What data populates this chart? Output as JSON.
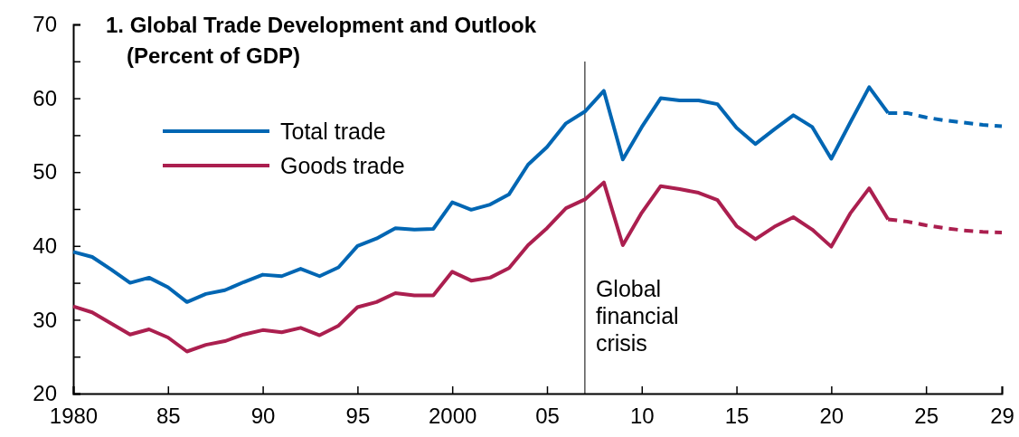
{
  "chart_data": {
    "type": "line",
    "title": "1. Global Trade Development and Outlook",
    "subtitle": "(Percent of GDP)",
    "xlim": [
      1980,
      2029
    ],
    "xticks": [
      {
        "value": 1980,
        "label": "1980"
      },
      {
        "value": 1985,
        "label": "85"
      },
      {
        "value": 1990,
        "label": "90"
      },
      {
        "value": 1995,
        "label": "95"
      },
      {
        "value": 2000,
        "label": "2000"
      },
      {
        "value": 2005,
        "label": "05"
      },
      {
        "value": 2010,
        "label": "10"
      },
      {
        "value": 2015,
        "label": "15"
      },
      {
        "value": 2020,
        "label": "20"
      },
      {
        "value": 2025,
        "label": "25"
      },
      {
        "value": 2029,
        "label": "29"
      }
    ],
    "ylim": [
      20,
      70
    ],
    "yticks": [
      20,
      {
        "value": 25,
        "label": null
      },
      30,
      {
        "value": 35,
        "label": null
      },
      40,
      {
        "value": 45,
        "label": null
      },
      50,
      {
        "value": 55,
        "label": null
      },
      60,
      {
        "value": 65,
        "label": null
      },
      70
    ],
    "legend": "top left",
    "grid": false,
    "marker": "none",
    "ref_lines": [
      {
        "axis": "x",
        "value": 2007,
        "label": "Global financial crisis",
        "color": "#000000"
      }
    ],
    "series": [
      {
        "name": "Total trade",
        "color": "#0066b3",
        "line_style": "solid",
        "x": [
          1980,
          1981,
          1982,
          1983,
          1984,
          1985,
          1986,
          1987,
          1988,
          1989,
          1990,
          1991,
          1992,
          1993,
          1994,
          1995,
          1996,
          1997,
          1998,
          1999,
          2000,
          2001,
          2002,
          2003,
          2004,
          2005,
          2006,
          2007,
          2008,
          2009,
          2010,
          2011,
          2012,
          2013,
          2014,
          2015,
          2016,
          2017,
          2018,
          2019,
          2020,
          2021,
          2022,
          2023
        ],
        "values": [
          39.2,
          38.5,
          36.8,
          35.0,
          35.7,
          34.4,
          32.4,
          33.5,
          34.0,
          35.1,
          36.1,
          35.9,
          36.9,
          35.9,
          37.1,
          40.0,
          41.0,
          42.4,
          42.2,
          42.3,
          45.9,
          44.9,
          45.6,
          47.0,
          51.0,
          53.4,
          56.6,
          58.2,
          61.0,
          51.7,
          56.1,
          60.0,
          59.7,
          59.7,
          59.2,
          56.0,
          53.8,
          55.8,
          57.7,
          56.1,
          51.8,
          56.7,
          61.5,
          58.0
        ]
      },
      {
        "name": "Goods trade",
        "color": "#ab1f4f",
        "line_style": "solid",
        "x": [
          1980,
          1981,
          1982,
          1983,
          1984,
          1985,
          1986,
          1987,
          1988,
          1989,
          1990,
          1991,
          1992,
          1993,
          1994,
          1995,
          1996,
          1997,
          1998,
          1999,
          2000,
          2001,
          2002,
          2003,
          2004,
          2005,
          2006,
          2007,
          2008,
          2009,
          2010,
          2011,
          2012,
          2013,
          2014,
          2015,
          2016,
          2017,
          2018,
          2019,
          2020,
          2021,
          2022,
          2023
        ],
        "values": [
          31.8,
          31.0,
          29.5,
          28.0,
          28.7,
          27.6,
          25.7,
          26.6,
          27.1,
          28.0,
          28.6,
          28.3,
          28.9,
          27.9,
          29.2,
          31.7,
          32.4,
          33.6,
          33.3,
          33.3,
          36.5,
          35.3,
          35.7,
          37.0,
          40.1,
          42.4,
          45.1,
          46.3,
          48.6,
          40.1,
          44.5,
          48.1,
          47.7,
          47.2,
          46.2,
          42.7,
          40.9,
          42.6,
          43.9,
          42.2,
          39.9,
          44.4,
          47.8,
          43.6
        ]
      },
      {
        "color": "#0066b3",
        "line_style": "dashed",
        "x": [
          2023,
          2024,
          2025,
          2026,
          2027,
          2028,
          2029
        ],
        "values": [
          58.0,
          58.0,
          57.4,
          57.0,
          56.7,
          56.4,
          56.2
        ]
      },
      {
        "color": "#ab1f4f",
        "line_style": "dashed",
        "x": [
          2023,
          2024,
          2025,
          2026,
          2027,
          2028,
          2029
        ],
        "values": [
          43.6,
          43.3,
          42.8,
          42.4,
          42.1,
          41.9,
          41.8
        ]
      }
    ]
  }
}
